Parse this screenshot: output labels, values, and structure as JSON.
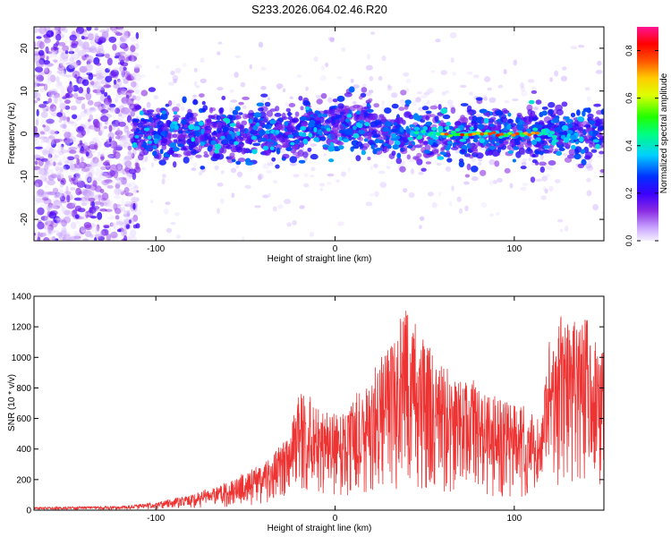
{
  "title": "S233.2026.064.02.46.R20",
  "chart_data": [
    {
      "type": "heatmap",
      "xlabel": "Height of straight line (km)",
      "ylabel": "Frequency (Hz)",
      "xlim": [
        -168,
        150
      ],
      "ylim": [
        -25,
        25
      ],
      "xticks": [
        -100,
        0,
        100
      ],
      "yticks": [
        -20,
        -10,
        0,
        10,
        20
      ],
      "colorbar": {
        "label": "Normalized spectral amplitude",
        "range": [
          0,
          0.9
        ],
        "ticks": [
          0.0,
          0.2,
          0.4,
          0.6,
          0.8
        ],
        "tick_labels": [
          "0.0",
          "0.2",
          "0.4",
          "0.6",
          "0.8"
        ],
        "colormap": [
          "#f5f0ff",
          "#a14dff",
          "#5a00e8",
          "#0033ff",
          "#00e5ff",
          "#22ff00",
          "#ffff00",
          "#ff8800",
          "#ff0000",
          "#ff1493"
        ]
      },
      "features": {
        "noise_region_x": [
          -168,
          -110
        ],
        "band_x": [
          -112,
          150
        ],
        "band_center_hz": 0,
        "band_halfwidth_hz": 7,
        "strong_segment_x": [
          60,
          115
        ],
        "strong_segment_peak": 0.85
      }
    },
    {
      "type": "line",
      "xlabel": "Height of straight line (km)",
      "ylabel": "SNR (10 * v/v)",
      "xlim": [
        -168,
        150
      ],
      "ylim": [
        0,
        1400
      ],
      "xticks": [
        -100,
        0,
        100
      ],
      "yticks": [
        0,
        200,
        400,
        600,
        800,
        1000,
        1200,
        1400
      ],
      "color": "#ee3333",
      "envelope": {
        "x": [
          -168,
          -120,
          -100,
          -80,
          -60,
          -40,
          -25,
          -20,
          0,
          20,
          40,
          60,
          80,
          100,
          115,
          120,
          140,
          150
        ],
        "y": [
          20,
          25,
          50,
          100,
          180,
          300,
          500,
          780,
          600,
          850,
          1300,
          900,
          800,
          700,
          600,
          1200,
          1250,
          1000
        ]
      }
    }
  ]
}
